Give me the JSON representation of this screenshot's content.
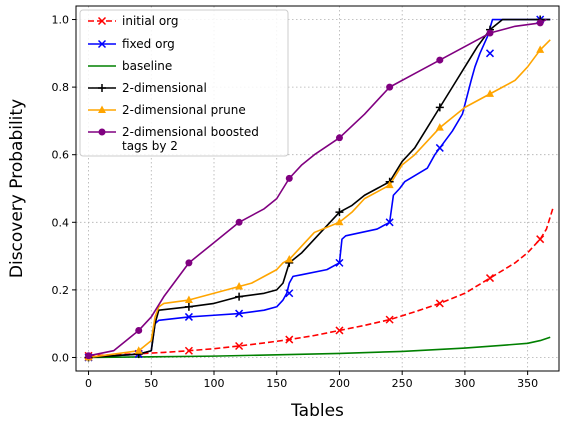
{
  "chart_data": {
    "type": "line",
    "title": "",
    "xlabel": "Tables",
    "ylabel": "Discovery Probability",
    "xlim": [
      -10,
      375
    ],
    "ylim": [
      -0.04,
      1.04
    ],
    "xticks": [
      0,
      50,
      100,
      150,
      200,
      250,
      300,
      350
    ],
    "yticks": [
      0.0,
      0.2,
      0.4,
      0.6,
      0.8,
      1.0
    ],
    "xtick_labels": [
      "0",
      "50",
      "100",
      "150",
      "200",
      "250",
      "300",
      "350"
    ],
    "ytick_labels": [
      "0.0",
      "0.2",
      "0.4",
      "0.6",
      "0.8",
      "1.0"
    ],
    "grid": true,
    "legend_position": "top-left",
    "series": [
      {
        "name": "initial org",
        "color": "#ff0000",
        "dash": "dashed",
        "marker": "x",
        "x": [
          0,
          20,
          40,
          60,
          80,
          100,
          120,
          140,
          160,
          180,
          200,
          220,
          240,
          260,
          280,
          300,
          320,
          340,
          350,
          360,
          365,
          370
        ],
        "y": [
          0.005,
          0.008,
          0.011,
          0.015,
          0.02,
          0.026,
          0.034,
          0.043,
          0.053,
          0.065,
          0.08,
          0.095,
          0.112,
          0.135,
          0.16,
          0.19,
          0.235,
          0.28,
          0.31,
          0.35,
          0.38,
          0.44
        ],
        "markers_x": [
          0,
          40,
          80,
          120,
          160,
          200,
          240,
          280,
          320,
          360
        ],
        "markers_y": [
          0.005,
          0.011,
          0.02,
          0.034,
          0.053,
          0.08,
          0.112,
          0.16,
          0.235,
          0.35
        ]
      },
      {
        "name": "fixed org",
        "color": "#0000ff",
        "dash": "solid",
        "marker": "x",
        "x": [
          0,
          40,
          50,
          53,
          56,
          80,
          100,
          120,
          140,
          150,
          155,
          158,
          160,
          163,
          170,
          190,
          200,
          202,
          205,
          230,
          240,
          243,
          248,
          252,
          270,
          276,
          280,
          290,
          298,
          305,
          308,
          312,
          318,
          322,
          325,
          330,
          340,
          350,
          360,
          368
        ],
        "y": [
          0.0,
          0.01,
          0.02,
          0.1,
          0.11,
          0.12,
          0.125,
          0.13,
          0.14,
          0.15,
          0.17,
          0.19,
          0.22,
          0.24,
          0.245,
          0.26,
          0.28,
          0.35,
          0.36,
          0.38,
          0.4,
          0.48,
          0.5,
          0.52,
          0.56,
          0.6,
          0.62,
          0.67,
          0.72,
          0.82,
          0.86,
          0.9,
          0.95,
          1.0,
          1.0,
          1.0,
          1.0,
          1.0,
          1.0,
          1.0
        ],
        "markers_x": [
          0,
          40,
          80,
          120,
          160,
          200,
          240,
          280,
          320,
          360
        ],
        "markers_y": [
          0.0,
          0.01,
          0.12,
          0.13,
          0.19,
          0.28,
          0.4,
          0.62,
          0.9,
          1.0
        ]
      },
      {
        "name": "baseline",
        "color": "#008000",
        "dash": "solid",
        "marker": "none",
        "x": [
          0,
          50,
          100,
          150,
          200,
          250,
          300,
          330,
          350,
          360,
          368
        ],
        "y": [
          0.0,
          0.002,
          0.004,
          0.008,
          0.012,
          0.018,
          0.028,
          0.036,
          0.042,
          0.05,
          0.06
        ]
      },
      {
        "name": "2-dimensional",
        "color": "#000000",
        "dash": "solid",
        "marker": "+",
        "x": [
          0,
          40,
          50,
          53,
          56,
          80,
          100,
          120,
          140,
          150,
          155,
          160,
          170,
          180,
          190,
          200,
          210,
          220,
          230,
          240,
          250,
          260,
          270,
          280,
          290,
          300,
          310,
          320,
          330,
          340,
          350,
          360,
          368
        ],
        "y": [
          0.0,
          0.01,
          0.02,
          0.1,
          0.14,
          0.15,
          0.16,
          0.18,
          0.19,
          0.2,
          0.22,
          0.28,
          0.31,
          0.35,
          0.39,
          0.43,
          0.45,
          0.48,
          0.5,
          0.52,
          0.58,
          0.62,
          0.68,
          0.74,
          0.8,
          0.86,
          0.92,
          0.97,
          1.0,
          1.0,
          1.0,
          1.0,
          1.0
        ],
        "markers_x": [
          0,
          40,
          80,
          120,
          160,
          200,
          240,
          280,
          320,
          360
        ],
        "markers_y": [
          0.0,
          0.01,
          0.15,
          0.18,
          0.28,
          0.43,
          0.52,
          0.74,
          0.97,
          1.0
        ]
      },
      {
        "name": "2-dimensional prune",
        "color": "#ffa500",
        "dash": "solid",
        "marker": "^",
        "x": [
          0,
          40,
          50,
          53,
          56,
          60,
          80,
          100,
          120,
          130,
          140,
          150,
          155,
          160,
          170,
          180,
          200,
          210,
          220,
          240,
          250,
          260,
          270,
          280,
          290,
          300,
          310,
          320,
          330,
          340,
          350,
          360,
          368
        ],
        "y": [
          0.0,
          0.02,
          0.05,
          0.12,
          0.15,
          0.16,
          0.17,
          0.19,
          0.21,
          0.22,
          0.24,
          0.26,
          0.28,
          0.29,
          0.33,
          0.37,
          0.4,
          0.43,
          0.47,
          0.51,
          0.57,
          0.6,
          0.64,
          0.68,
          0.71,
          0.74,
          0.76,
          0.78,
          0.8,
          0.82,
          0.86,
          0.91,
          0.94
        ],
        "markers_x": [
          0,
          40,
          80,
          120,
          160,
          200,
          240,
          280,
          320,
          360
        ],
        "markers_y": [
          0.0,
          0.02,
          0.17,
          0.21,
          0.29,
          0.4,
          0.51,
          0.68,
          0.78,
          0.91
        ]
      },
      {
        "name": "2-dimensional boosted\ntags by 2",
        "color": "#800080",
        "dash": "solid",
        "marker": "o",
        "x": [
          0,
          20,
          30,
          40,
          50,
          60,
          70,
          80,
          100,
          120,
          140,
          150,
          160,
          170,
          180,
          200,
          220,
          240,
          260,
          280,
          300,
          320,
          340,
          360,
          365
        ],
        "y": [
          0.005,
          0.02,
          0.05,
          0.08,
          0.12,
          0.18,
          0.23,
          0.28,
          0.34,
          0.4,
          0.44,
          0.47,
          0.53,
          0.57,
          0.6,
          0.65,
          0.72,
          0.8,
          0.84,
          0.88,
          0.92,
          0.96,
          0.98,
          0.99,
          1.0
        ],
        "markers_x": [
          0,
          40,
          80,
          120,
          160,
          200,
          240,
          280,
          320,
          360
        ],
        "markers_y": [
          0.005,
          0.08,
          0.28,
          0.4,
          0.53,
          0.65,
          0.8,
          0.88,
          0.96,
          0.99
        ]
      }
    ]
  }
}
